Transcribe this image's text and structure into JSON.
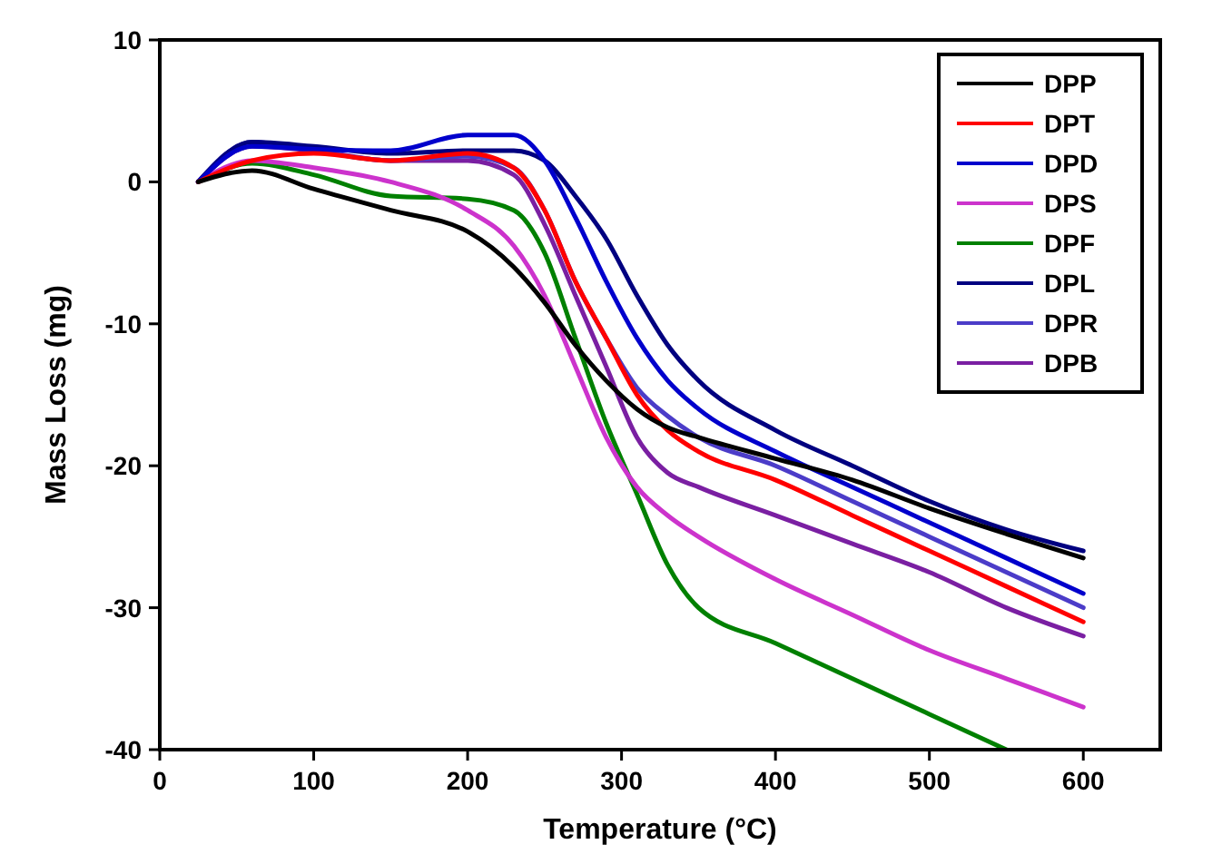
{
  "chart_data": {
    "type": "line",
    "xlabel": "Temperature (°C)",
    "ylabel": "Mass Loss (mg)",
    "xlim": [
      0,
      650
    ],
    "ylim": [
      -40,
      10
    ],
    "xticks": [
      0,
      100,
      200,
      300,
      400,
      500,
      600
    ],
    "yticks": [
      -40,
      -30,
      -20,
      -10,
      0,
      10
    ],
    "grid": false,
    "legend": "top right",
    "x": [
      25,
      60,
      100,
      150,
      200,
      230,
      250,
      270,
      290,
      310,
      330,
      350,
      400,
      450,
      500,
      550,
      600
    ],
    "series": [
      {
        "name": "DPP",
        "color": "#000000",
        "values": [
          0,
          0.8,
          -0.5,
          -2,
          -3.5,
          -6,
          -8.5,
          -11.5,
          -14,
          -16,
          -17.3,
          -18,
          -19.5,
          -21,
          -23,
          -24.8,
          -26.5
        ]
      },
      {
        "name": "DPT",
        "color": "#ff0000",
        "values": [
          0,
          1.5,
          2,
          1.5,
          2,
          1,
          -2,
          -7,
          -11,
          -15,
          -17.5,
          -19,
          -21,
          -23.5,
          -26,
          -28.5,
          -31
        ]
      },
      {
        "name": "DPD",
        "color": "#0000cc",
        "values": [
          0,
          2.5,
          2.3,
          2.2,
          3.3,
          3.3,
          1.5,
          -2.5,
          -7,
          -11,
          -14,
          -16,
          -19,
          -21.5,
          -24,
          -26.5,
          -29
        ]
      },
      {
        "name": "DPS",
        "color": "#cc33cc",
        "values": [
          0,
          1.5,
          1,
          0,
          -2,
          -4.5,
          -8,
          -13,
          -18,
          -21.5,
          -23.5,
          -25,
          -28,
          -30.5,
          -33,
          -35,
          -37
        ]
      },
      {
        "name": "DPF",
        "color": "#008000",
        "values": [
          0,
          1.3,
          0.5,
          -1,
          -1.2,
          -2,
          -5,
          -11,
          -17,
          -22,
          -27,
          -30,
          -32.5,
          -35,
          -37.5,
          -40,
          null
        ]
      },
      {
        "name": "DPL",
        "color": "#000080",
        "values": [
          0,
          2.8,
          2.5,
          2,
          2.2,
          2.2,
          1.5,
          -1,
          -4,
          -8,
          -11.5,
          -14,
          -17.5,
          -20,
          -22.5,
          -24.5,
          -26
        ]
      },
      {
        "name": "DPR",
        "color": "#4b3cc8",
        "values": [
          0,
          2.8,
          2.2,
          1.5,
          1.8,
          1,
          -2,
          -7,
          -11,
          -14.5,
          -16.5,
          -18,
          -20,
          -22.5,
          -25,
          -27.5,
          -30
        ]
      },
      {
        "name": "DPB",
        "color": "#7a1fa2",
        "values": [
          0,
          2.5,
          2.2,
          1.5,
          1.5,
          0.5,
          -3,
          -8,
          -13,
          -18,
          -20.5,
          -21.5,
          -23.5,
          -25.5,
          -27.5,
          -30,
          -32
        ]
      }
    ]
  }
}
